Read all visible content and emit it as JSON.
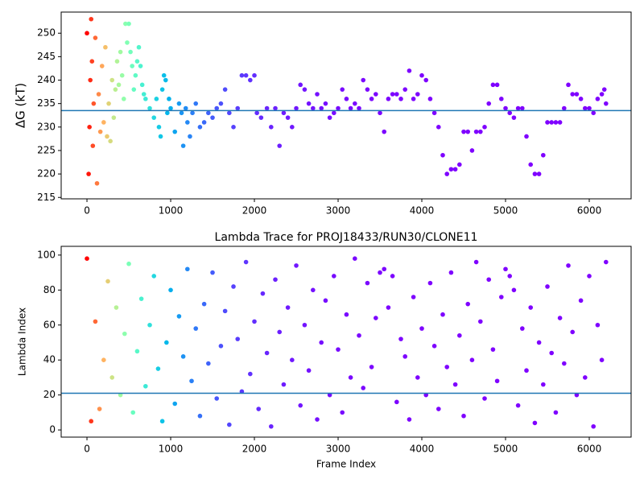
{
  "chart_data": [
    {
      "type": "scatter",
      "ylabel": "ΔG (kT)",
      "colormap": "rainbow",
      "hline": 233.5,
      "hline_color": "#1f77b4",
      "xlim": [
        -308,
        6500
      ],
      "ylim": [
        214.7,
        254.5
      ],
      "xticks": [
        0,
        1000,
        2000,
        3000,
        4000,
        5000,
        6000
      ],
      "yticks": [
        215,
        220,
        225,
        230,
        235,
        240,
        245,
        250
      ],
      "x": [
        0,
        20,
        30,
        40,
        50,
        60,
        70,
        80,
        100,
        120,
        140,
        160,
        180,
        200,
        220,
        240,
        260,
        280,
        300,
        320,
        340,
        360,
        380,
        400,
        420,
        440,
        460,
        480,
        500,
        520,
        540,
        560,
        580,
        600,
        620,
        640,
        660,
        680,
        700,
        750,
        800,
        830,
        860,
        880,
        900,
        920,
        940,
        960,
        980,
        1000,
        1050,
        1100,
        1130,
        1150,
        1180,
        1200,
        1230,
        1260,
        1300,
        1350,
        1400,
        1450,
        1500,
        1550,
        1600,
        1650,
        1700,
        1750,
        1800,
        1850,
        1900,
        1950,
        2000,
        2030,
        2080,
        2150,
        2200,
        2250,
        2300,
        2350,
        2400,
        2450,
        2500,
        2550,
        2600,
        2650,
        2700,
        2750,
        2800,
        2850,
        2900,
        2950,
        3000,
        3050,
        3100,
        3150,
        3200,
        3250,
        3300,
        3350,
        3400,
        3450,
        3500,
        3550,
        3600,
        3650,
        3700,
        3750,
        3800,
        3850,
        3900,
        3950,
        4000,
        4050,
        4100,
        4150,
        4200,
        4250,
        4300,
        4350,
        4400,
        4450,
        4500,
        4550,
        4600,
        4650,
        4700,
        4750,
        4800,
        4850,
        4900,
        4950,
        5000,
        5050,
        5100,
        5150,
        5200,
        5250,
        5300,
        5350,
        5400,
        5450,
        5500,
        5550,
        5600,
        5650,
        5700,
        5750,
        5800,
        5850,
        5900,
        5950,
        6000,
        6050,
        6100,
        6150,
        6180,
        6200
      ],
      "y": [
        250,
        220,
        230,
        240,
        253,
        244,
        226,
        235,
        249,
        218,
        237,
        229,
        243,
        231,
        247,
        228,
        235,
        227,
        240,
        232,
        238,
        244,
        239,
        246,
        241,
        236,
        252,
        248,
        252,
        246,
        243,
        238,
        241,
        244,
        247,
        243,
        239,
        237,
        236,
        234,
        232,
        236,
        230,
        228,
        238,
        241,
        240,
        233,
        236,
        234,
        229,
        235,
        233,
        226,
        234,
        231,
        228,
        233,
        235,
        230,
        231,
        233,
        232,
        234,
        235,
        238,
        233,
        230,
        234,
        241,
        241,
        240,
        241,
        233,
        232,
        234,
        230,
        234,
        226,
        233,
        232,
        230,
        234,
        239,
        238,
        235,
        234,
        237,
        234,
        235,
        232,
        233,
        234,
        238,
        236,
        234,
        235,
        234,
        240,
        238,
        236,
        237,
        233,
        229,
        236,
        237,
        237,
        236,
        238,
        242,
        236,
        237,
        241,
        240,
        236,
        233,
        230,
        224,
        220,
        221,
        221,
        222,
        229,
        229,
        225,
        229,
        229,
        230,
        235,
        239,
        239,
        236,
        234,
        233,
        232,
        234,
        234,
        228,
        222,
        220,
        220,
        224,
        231,
        231,
        231,
        231,
        234,
        239,
        237,
        237,
        236,
        234,
        234,
        233,
        236,
        237,
        238,
        235
      ]
    },
    {
      "type": "scatter",
      "title": "Lambda Trace for PROJ18433/RUN30/CLONE11",
      "xlabel": "Frame Index",
      "ylabel": "Lambda Index",
      "colormap": "rainbow",
      "hline": 21,
      "hline_color": "#1f77b4",
      "xlim": [
        -308,
        6500
      ],
      "ylim": [
        -4.1,
        105
      ],
      "xticks": [
        0,
        1000,
        2000,
        3000,
        4000,
        5000,
        6000
      ],
      "yticks": [
        0,
        20,
        40,
        60,
        80,
        100
      ],
      "x": [
        0,
        50,
        100,
        150,
        200,
        250,
        300,
        350,
        400,
        450,
        500,
        550,
        600,
        650,
        700,
        750,
        800,
        850,
        900,
        950,
        1000,
        1050,
        1100,
        1150,
        1200,
        1250,
        1300,
        1350,
        1400,
        1450,
        1500,
        1550,
        1600,
        1650,
        1700,
        1750,
        1800,
        1850,
        1900,
        1950,
        2000,
        2050,
        2100,
        2150,
        2200,
        2250,
        2300,
        2350,
        2400,
        2450,
        2500,
        2550,
        2600,
        2650,
        2700,
        2750,
        2800,
        2850,
        2900,
        2950,
        3000,
        3050,
        3100,
        3150,
        3200,
        3250,
        3300,
        3350,
        3400,
        3450,
        3500,
        3550,
        3600,
        3650,
        3700,
        3750,
        3800,
        3850,
        3900,
        3950,
        4000,
        4050,
        4100,
        4150,
        4200,
        4250,
        4300,
        4350,
        4400,
        4450,
        4500,
        4550,
        4600,
        4650,
        4700,
        4750,
        4800,
        4850,
        4900,
        4950,
        5000,
        5050,
        5100,
        5150,
        5200,
        5250,
        5300,
        5350,
        5400,
        5450,
        5500,
        5550,
        5600,
        5650,
        5700,
        5750,
        5800,
        5850,
        5900,
        5950,
        6000,
        6050,
        6100,
        6150,
        6200
      ],
      "y": [
        98,
        5,
        62,
        12,
        40,
        85,
        30,
        70,
        20,
        55,
        95,
        10,
        45,
        75,
        25,
        60,
        88,
        35,
        5,
        50,
        80,
        15,
        65,
        42,
        92,
        28,
        58,
        8,
        72,
        38,
        90,
        18,
        48,
        68,
        3,
        82,
        52,
        22,
        96,
        32,
        62,
        12,
        78,
        44,
        2,
        86,
        56,
        26,
        70,
        40,
        94,
        14,
        60,
        34,
        80,
        6,
        50,
        74,
        20,
        88,
        46,
        10,
        66,
        30,
        98,
        54,
        24,
        84,
        36,
        64,
        90,
        92,
        70,
        88,
        16,
        52,
        42,
        6,
        76,
        30,
        58,
        20,
        84,
        48,
        12,
        66,
        36,
        90,
        26,
        54,
        8,
        72,
        40,
        96,
        62,
        18,
        86,
        46,
        28,
        76,
        92,
        88,
        80,
        14,
        58,
        34,
        70,
        4,
        50,
        26,
        82,
        44,
        10,
        64,
        38,
        94,
        56,
        20,
        74,
        30,
        88,
        2,
        60,
        40,
        96
      ]
    }
  ]
}
